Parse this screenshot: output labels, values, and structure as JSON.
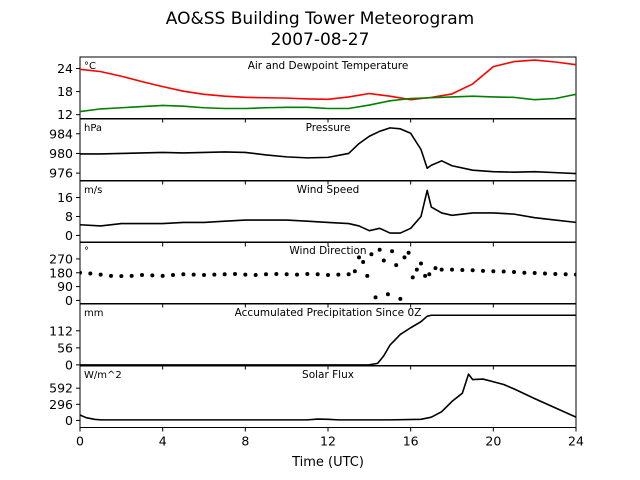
{
  "title_line1": "AO&SS Building Tower Meteorogram",
  "title_line2": "2007-08-27",
  "xlabel": "Time (UTC)",
  "colors": {
    "temperature": "#ff0000",
    "dewpoint": "#008000",
    "black": "#000000"
  },
  "chart_data": [
    {
      "type": "line",
      "title": "Air and Dewpoint Temperature",
      "unit": "°C",
      "ylim": [
        11,
        27
      ],
      "yticks": [
        12,
        18,
        24
      ],
      "xlim": [
        0,
        24
      ],
      "xticks": [
        0,
        4,
        8,
        12,
        16,
        20,
        24
      ],
      "series": [
        {
          "color_key": "temperature",
          "x": [
            0,
            1,
            2,
            3,
            4,
            5,
            6,
            7,
            8,
            9,
            10,
            11,
            12,
            13,
            14,
            15,
            16,
            17,
            18,
            19,
            20,
            21,
            22,
            23,
            24
          ],
          "values": [
            23.8,
            23.2,
            22.0,
            20.6,
            19.3,
            18.1,
            17.3,
            16.8,
            16.5,
            16.4,
            16.3,
            16.1,
            16.0,
            16.6,
            17.5,
            16.8,
            15.9,
            16.5,
            17.4,
            20.0,
            24.5,
            25.8,
            26.2,
            25.7,
            25.0
          ]
        },
        {
          "color_key": "dewpoint",
          "x": [
            0,
            1,
            2,
            3,
            4,
            5,
            6,
            7,
            8,
            9,
            10,
            11,
            12,
            13,
            14,
            15,
            16,
            17,
            18,
            19,
            20,
            21,
            22,
            23,
            24
          ],
          "values": [
            12.8,
            13.5,
            13.8,
            14.1,
            14.4,
            14.2,
            13.8,
            13.6,
            13.6,
            13.8,
            13.9,
            13.9,
            13.6,
            13.6,
            14.5,
            15.6,
            16.2,
            16.4,
            16.6,
            16.8,
            16.6,
            16.5,
            15.9,
            16.2,
            17.3
          ]
        }
      ]
    },
    {
      "type": "line",
      "title": "Pressure",
      "unit": "hPa",
      "ylim": [
        974.5,
        987
      ],
      "yticks": [
        976,
        980,
        984
      ],
      "xlim": [
        0,
        24
      ],
      "xticks": [
        0,
        4,
        8,
        12,
        16,
        20,
        24
      ],
      "series": [
        {
          "color_key": "black",
          "x": [
            0,
            1,
            2,
            3,
            4,
            5,
            6,
            7,
            8,
            9,
            10,
            11,
            12,
            13,
            13.5,
            14,
            14.5,
            15,
            15.5,
            16,
            16.5,
            16.8,
            17,
            17.5,
            18,
            19,
            20,
            21,
            22,
            23,
            24
          ],
          "values": [
            979.9,
            979.9,
            980.0,
            980.1,
            980.2,
            980.1,
            980.2,
            980.3,
            980.2,
            979.7,
            979.3,
            979.1,
            979.2,
            980.0,
            982.0,
            983.5,
            984.5,
            985.2,
            985.0,
            984.1,
            980.8,
            977.0,
            977.6,
            978.5,
            977.5,
            976.6,
            976.3,
            976.2,
            976.3,
            976.1,
            975.9
          ]
        }
      ]
    },
    {
      "type": "line",
      "title": "Wind Speed",
      "unit": "m/s",
      "ylim": [
        -3,
        23
      ],
      "yticks": [
        0,
        8,
        16
      ],
      "xlim": [
        0,
        24
      ],
      "xticks": [
        0,
        4,
        8,
        12,
        16,
        20,
        24
      ],
      "series": [
        {
          "color_key": "black",
          "x": [
            0,
            1,
            2,
            3,
            4,
            5,
            6,
            7,
            8,
            9,
            10,
            11,
            12,
            13,
            13.5,
            14,
            14.5,
            15,
            15.5,
            16,
            16.5,
            16.8,
            17,
            17.5,
            18,
            19,
            20,
            21,
            22,
            23,
            24
          ],
          "values": [
            4.5,
            4.0,
            5.0,
            5.0,
            5.0,
            5.5,
            5.5,
            6.0,
            6.5,
            6.5,
            6.5,
            6.0,
            5.5,
            5.0,
            4.0,
            2.0,
            3.0,
            1.0,
            1.0,
            3.0,
            8.0,
            19.0,
            12.0,
            9.5,
            8.5,
            9.5,
            9.5,
            9.0,
            7.5,
            6.5,
            5.5
          ]
        }
      ]
    },
    {
      "type": "scatter",
      "title": "Wind Direction",
      "unit": "°",
      "ylim": [
        -20,
        380
      ],
      "yticks": [
        0,
        90,
        180,
        270
      ],
      "xlim": [
        0,
        24
      ],
      "xticks": [
        0,
        4,
        8,
        12,
        16,
        20,
        24
      ],
      "series": [
        {
          "color_key": "black",
          "x": [
            0,
            0.5,
            1,
            1.5,
            2,
            2.5,
            3,
            3.5,
            4,
            4.5,
            5,
            5.5,
            6,
            6.5,
            7,
            7.5,
            8,
            8.5,
            9,
            9.5,
            10,
            10.5,
            11,
            11.5,
            12,
            12.5,
            13,
            13.3,
            13.5,
            13.7,
            13.9,
            14.1,
            14.3,
            14.5,
            14.7,
            14.9,
            15.1,
            15.3,
            15.5,
            15.7,
            15.9,
            16.1,
            16.3,
            16.5,
            16.7,
            16.9,
            17.2,
            17.5,
            18,
            18.5,
            19,
            19.5,
            20,
            20.5,
            21,
            21.5,
            22,
            22.5,
            23,
            23.5,
            24
          ],
          "values": [
            180,
            175,
            168,
            160,
            158,
            160,
            165,
            163,
            160,
            165,
            170,
            168,
            165,
            168,
            170,
            172,
            168,
            165,
            170,
            172,
            170,
            168,
            172,
            170,
            165,
            168,
            170,
            190,
            280,
            250,
            160,
            300,
            20,
            330,
            260,
            40,
            320,
            230,
            10,
            280,
            310,
            150,
            200,
            240,
            160,
            170,
            210,
            200,
            200,
            198,
            196,
            192,
            190,
            188,
            185,
            180,
            178,
            175,
            172,
            170,
            168
          ]
        }
      ]
    },
    {
      "type": "line",
      "title": "Accumulated Precipitation Since 0Z",
      "unit": "mm",
      "ylim": [
        -2,
        200
      ],
      "yticks": [
        0,
        56,
        112
      ],
      "xlim": [
        0,
        24
      ],
      "xticks": [
        0,
        4,
        8,
        12,
        16,
        20,
        24
      ],
      "series": [
        {
          "color_key": "black",
          "x": [
            0,
            5,
            10,
            13,
            14,
            14.4,
            14.7,
            15,
            15.5,
            16,
            16.5,
            16.8,
            17,
            20,
            24
          ],
          "values": [
            0,
            0,
            0,
            0,
            0.5,
            5,
            30,
            65,
            100,
            122,
            142,
            160,
            163,
            163,
            163
          ]
        }
      ]
    },
    {
      "type": "line",
      "title": "Solar Flux",
      "unit": "W/m^2",
      "ylim": [
        -130,
        1000
      ],
      "yticks": [
        0,
        296,
        592
      ],
      "xlim": [
        0,
        24
      ],
      "xticks": [
        0,
        4,
        8,
        12,
        16,
        20,
        24
      ],
      "series": [
        {
          "color_key": "black",
          "x": [
            0,
            0.3,
            0.7,
            1,
            2,
            5,
            8,
            10,
            11,
            11.5,
            12,
            12.5,
            13,
            15,
            16.5,
            17,
            17.5,
            18,
            18.5,
            18.8,
            19,
            19.5,
            20,
            20.5,
            21,
            22,
            23,
            24
          ],
          "values": [
            100,
            50,
            20,
            10,
            10,
            10,
            10,
            10,
            10,
            25,
            20,
            10,
            10,
            10,
            20,
            60,
            160,
            350,
            500,
            850,
            750,
            760,
            710,
            660,
            580,
            400,
            230,
            60
          ]
        }
      ]
    }
  ]
}
